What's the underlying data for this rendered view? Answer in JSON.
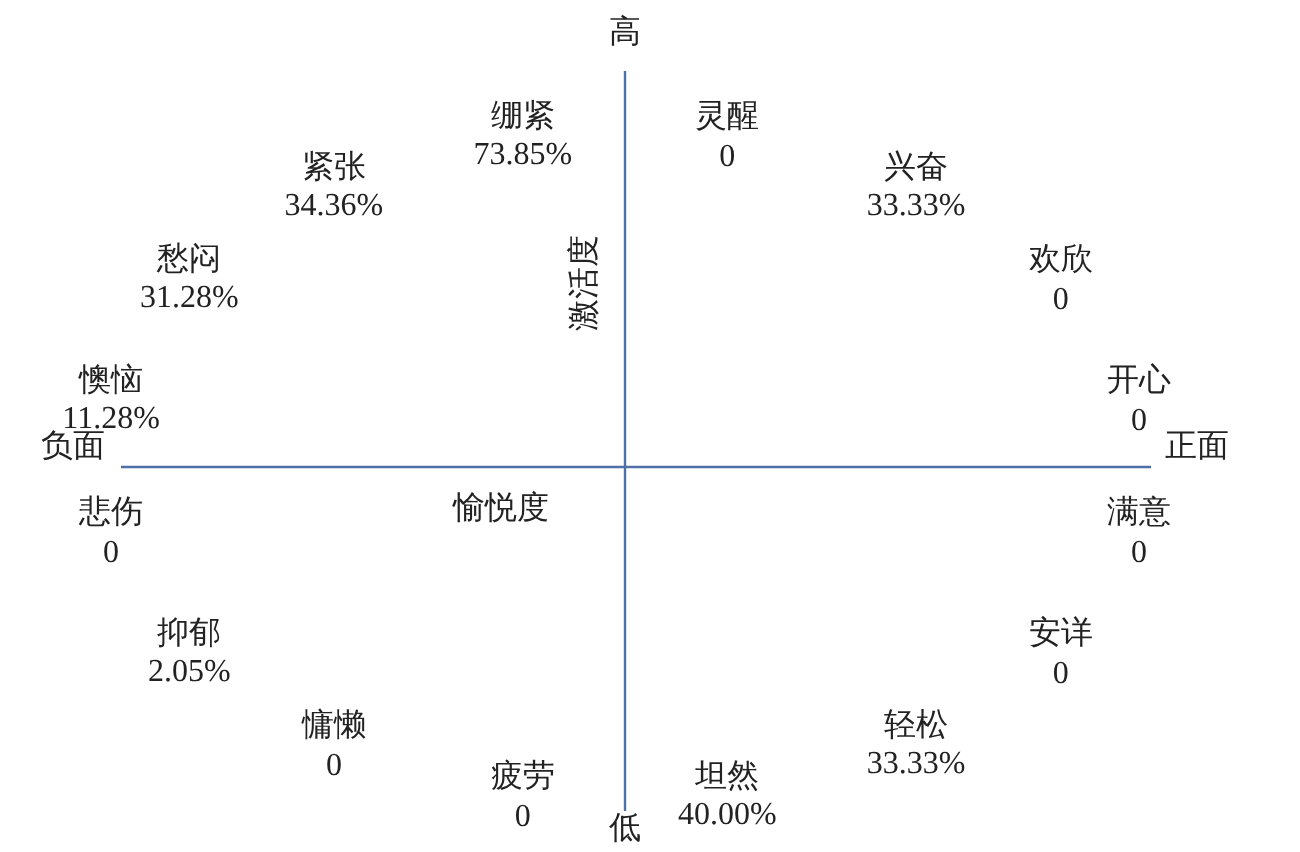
{
  "chart_data": {
    "type": "other",
    "xlabel": "愉悦度",
    "ylabel": "激活度",
    "annotations": [
      "高",
      "正面",
      "低",
      "负面"
    ],
    "categories": [
      "灵醒",
      "兴奋",
      "欢欣",
      "开心",
      "满意",
      "安详",
      "轻松",
      "坦然",
      "疲劳",
      "慵懒",
      "抑郁",
      "悲伤",
      "懊恼",
      "愁闷",
      "紧张",
      "绷紧"
    ],
    "values": [
      0,
      33.33,
      0,
      0,
      0,
      0,
      33.33,
      40.0,
      0,
      0,
      2.05,
      0,
      11.28,
      31.28,
      34.36,
      73.85
    ],
    "value_labels": [
      "0",
      "33.33%",
      "0",
      "0",
      "0",
      "0",
      "33.33%",
      "40.00%",
      "0",
      "0",
      "2.05%",
      "0",
      "11.28%",
      "31.28%",
      "34.36%",
      "73.85%"
    ]
  }
}
